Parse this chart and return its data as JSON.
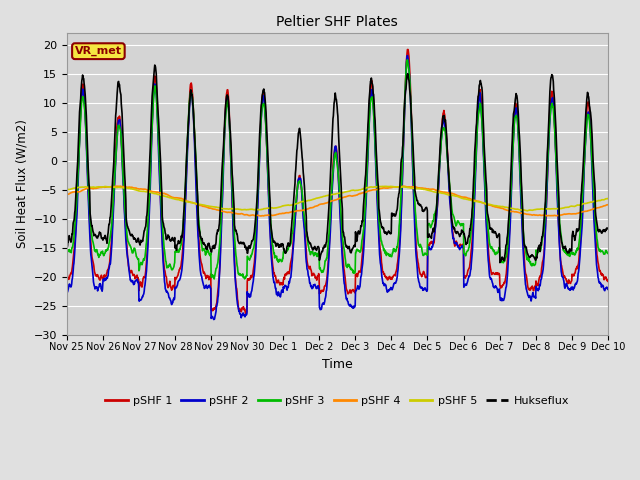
{
  "title": "Peltier SHF Plates",
  "xlabel": "Time",
  "ylabel": "Soil Heat Flux (W/m2)",
  "ylim": [
    -30,
    22
  ],
  "yticks": [
    -30,
    -25,
    -20,
    -15,
    -10,
    -5,
    0,
    5,
    10,
    15,
    20
  ],
  "fig_bg_color": "#e0e0e0",
  "plot_bg_color": "#d4d4d4",
  "grid_color": "#ffffff",
  "annotation_text": "VR_met",
  "annotation_bg": "#f5e642",
  "annotation_border": "#8b0000",
  "line_colors": {
    "pSHF 1": "#cc0000",
    "pSHF 2": "#0000cc",
    "pSHF 3": "#00bb00",
    "pSHF 4": "#ff8800",
    "pSHF 5": "#cccc00",
    "Hukseflux": "#000000"
  },
  "legend_entries": [
    "pSHF 1",
    "pSHF 2",
    "pSHF 3",
    "pSHF 4",
    "pSHF 5",
    "Hukseflux"
  ],
  "x_tick_labels": [
    "Nov 25",
    "Nov 26",
    "Nov 27",
    "Nov 28",
    "Nov 29",
    "Nov 30",
    "Dec 1",
    "Dec 2",
    "Dec 3",
    "Dec 4",
    "Dec 5",
    "Dec 6",
    "Dec 7",
    "Dec 8",
    "Dec 9",
    "Dec 10"
  ],
  "days": 15,
  "n_points": 1440
}
